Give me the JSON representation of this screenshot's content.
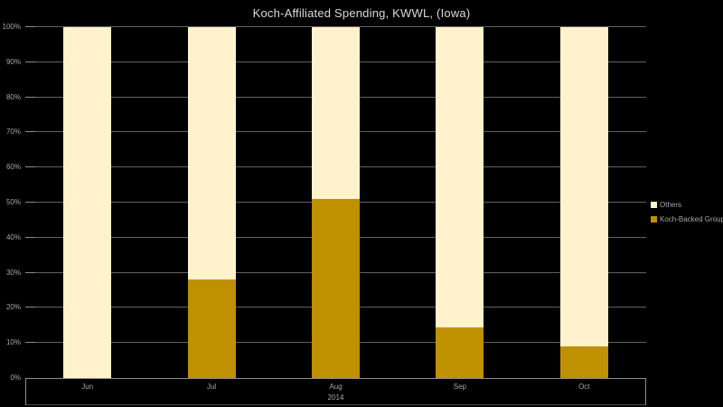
{
  "chart_data": {
    "type": "bar",
    "subtype": "stacked-100-percent-column",
    "title": "Koch-Affiliated Spending, KWWL, (Iowa)",
    "categories": [
      "Jun",
      "Jul",
      "Aug",
      "Sep",
      "Oct"
    ],
    "year_label": "2014",
    "series": [
      {
        "name": "Koch-Backed Groups",
        "color": "#BF9000",
        "values": [
          0,
          28,
          51,
          14.5,
          9
        ]
      },
      {
        "name": "Others",
        "color": "#FFF2CC",
        "values": [
          100,
          72,
          49,
          85.5,
          91
        ]
      }
    ],
    "xlabel": "",
    "ylabel": "",
    "ylim": [
      0,
      100
    ],
    "ytick_labels": [
      "0%",
      "10%",
      "20%",
      "30%",
      "40%",
      "50%",
      "60%",
      "70%",
      "80%",
      "90%",
      "100%"
    ],
    "grid": true,
    "legend_position": "right",
    "legend_order": [
      "Others",
      "Koch-Backed Groups"
    ],
    "colors": {
      "background": "#000000",
      "title": "#D9D9D9",
      "gridline": "#616161",
      "axis_line": "#8C8C8C",
      "tick_label": "#A6A6A6",
      "others_fill": "#FFF2CC",
      "koch_fill": "#BF9000"
    }
  }
}
